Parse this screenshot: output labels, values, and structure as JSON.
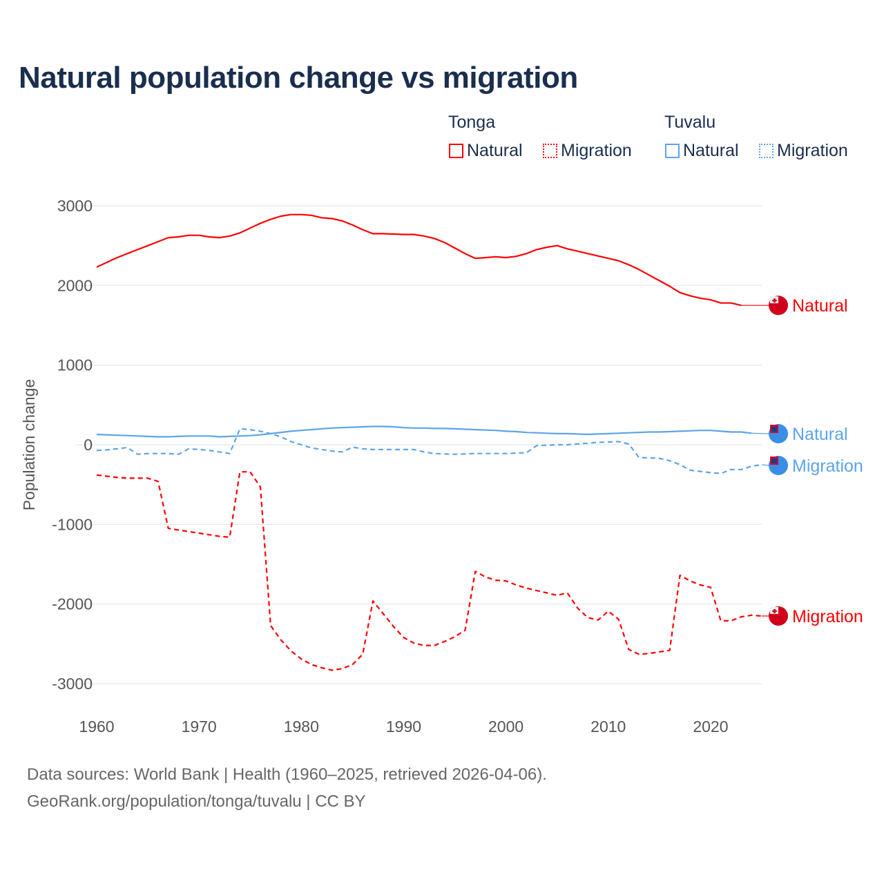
{
  "title": "Natural population change vs migration",
  "legend": {
    "groups": [
      {
        "name": "Tonga",
        "items": [
          "Natural",
          "Migration"
        ],
        "color": "#ff0000"
      },
      {
        "name": "Tuvalu",
        "items": [
          "Natural",
          "Migration"
        ],
        "color": "#5ba4ea"
      }
    ]
  },
  "footer": {
    "line1": "Data sources: World Bank | Health (1960–2025, retrieved 2026-04-06).",
    "line2": "GeoRank.org/population/tonga/tuvalu | CC BY"
  },
  "chart_data": {
    "type": "line",
    "title": "Natural population change vs migration",
    "xlabel": "",
    "ylabel": "Population change",
    "xlim": [
      1960,
      2025
    ],
    "ylim": [
      -3000,
      3000
    ],
    "xticks": [
      "1960",
      "1970",
      "1980",
      "1990",
      "2000",
      "2010",
      "2020"
    ],
    "yticks": [
      "3000",
      "2000",
      "1000",
      "0",
      "-1000",
      "-2000",
      "-3000"
    ],
    "grid": true,
    "x_start": 1960,
    "series": [
      {
        "name": "Tonga Natural",
        "label": "Natural",
        "color": "#ff0000",
        "dash": false,
        "values": [
          2230,
          2290,
          2350,
          2400,
          2450,
          2500,
          2550,
          2600,
          2610,
          2630,
          2630,
          2610,
          2600,
          2620,
          2660,
          2720,
          2780,
          2830,
          2870,
          2890,
          2890,
          2880,
          2850,
          2840,
          2810,
          2760,
          2700,
          2650,
          2650,
          2645,
          2640,
          2640,
          2620,
          2590,
          2540,
          2470,
          2400,
          2340,
          2350,
          2360,
          2350,
          2365,
          2400,
          2450,
          2480,
          2500,
          2460,
          2430,
          2400,
          2370,
          2340,
          2310,
          2260,
          2200,
          2130,
          2060,
          1990,
          1910,
          1870,
          1840,
          1820,
          1780,
          1780,
          1750
        ]
      },
      {
        "name": "Tonga Migration",
        "label": "Migration",
        "color": "#ff0000",
        "dash": true,
        "values": [
          -380,
          -395,
          -410,
          -420,
          -420,
          -420,
          -460,
          -1050,
          -1070,
          -1090,
          -1110,
          -1130,
          -1150,
          -1160,
          -340,
          -340,
          -530,
          -2270,
          -2450,
          -2590,
          -2690,
          -2760,
          -2800,
          -2830,
          -2810,
          -2760,
          -2630,
          -1960,
          -2120,
          -2280,
          -2420,
          -2490,
          -2520,
          -2520,
          -2470,
          -2410,
          -2330,
          -1590,
          -1660,
          -1700,
          -1710,
          -1760,
          -1800,
          -1830,
          -1860,
          -1890,
          -1860,
          -2050,
          -2170,
          -2200,
          -2090,
          -2190,
          -2570,
          -2630,
          -2620,
          -2600,
          -2580,
          -1640,
          -1710,
          -1760,
          -1790,
          -2210,
          -2210,
          -2160,
          -2140,
          -2150
        ]
      },
      {
        "name": "Tuvalu Natural",
        "label": "Natural",
        "color": "#5ba4ea",
        "dash": false,
        "values": [
          130,
          125,
          120,
          115,
          110,
          105,
          100,
          100,
          105,
          110,
          110,
          110,
          100,
          105,
          110,
          115,
          125,
          140,
          155,
          170,
          180,
          190,
          200,
          210,
          215,
          220,
          225,
          230,
          230,
          225,
          215,
          210,
          210,
          205,
          205,
          200,
          195,
          190,
          185,
          180,
          170,
          165,
          155,
          150,
          145,
          140,
          140,
          135,
          130,
          135,
          140,
          145,
          150,
          155,
          160,
          160,
          165,
          170,
          175,
          180,
          180,
          170,
          160,
          160,
          145
        ]
      },
      {
        "name": "Tuvalu Migration",
        "label": "Migration",
        "color": "#5ba4ea",
        "dash": true,
        "values": [
          -70,
          -65,
          -50,
          -35,
          -120,
          -110,
          -110,
          -110,
          -120,
          -50,
          -60,
          -70,
          -90,
          -110,
          200,
          190,
          170,
          140,
          100,
          40,
          0,
          -40,
          -60,
          -80,
          -90,
          -30,
          -50,
          -60,
          -60,
          -60,
          -60,
          -60,
          -90,
          -110,
          -115,
          -120,
          -115,
          -110,
          -110,
          -110,
          -110,
          -105,
          -100,
          -10,
          -5,
          0,
          0,
          10,
          20,
          30,
          35,
          40,
          10,
          -160,
          -165,
          -170,
          -200,
          -250,
          -320,
          -335,
          -350,
          -360,
          -310,
          -310,
          -270,
          -250
        ]
      }
    ]
  }
}
